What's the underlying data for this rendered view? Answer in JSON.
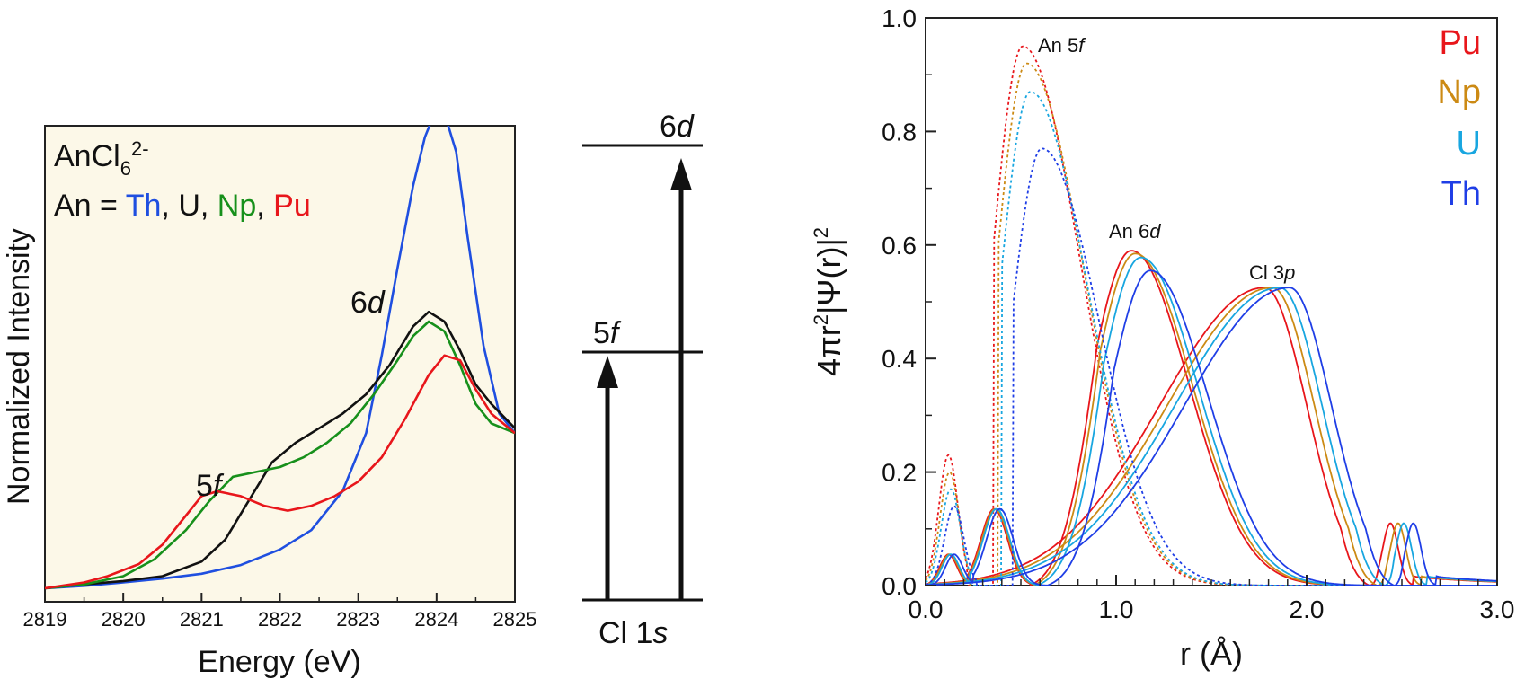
{
  "chart_data": [
    {
      "type": "line",
      "title": "",
      "xlabel": "Energy (eV)",
      "ylabel": "Normalized Intensity",
      "xlim": [
        2819,
        2825
      ],
      "ylim": [
        0,
        1.1
      ],
      "xticks": [
        "2819",
        "2820",
        "2821",
        "2822",
        "2823",
        "2824",
        "2825"
      ],
      "legend": {
        "line1": "AnCl",
        "line1_sub": "6",
        "line1_sup": "2-",
        "line2_prefix": "An = ",
        "entries": [
          {
            "label": "Th",
            "color": "#1f4fe0"
          },
          {
            "label": "U",
            "color": "#111111"
          },
          {
            "label": "Np",
            "color": "#17901b"
          },
          {
            "label": "Pu",
            "color": "#e8161b"
          }
        ],
        "separator": ", "
      },
      "annotations": [
        {
          "text": "5",
          "italic": "f"
        },
        {
          "text": "6",
          "italic": "d"
        }
      ],
      "series": [
        {
          "name": "Th",
          "color": "#1f4fe0",
          "x": [
            2819,
            2819.5,
            2820,
            2820.5,
            2821,
            2821.5,
            2822,
            2822.4,
            2822.8,
            2823.1,
            2823.3,
            2823.5,
            2823.7,
            2823.85,
            2824,
            2824.1,
            2824.25,
            2824.4,
            2824.6,
            2824.8,
            2825
          ],
          "y": [
            0,
            0.005,
            0.012,
            0.02,
            0.03,
            0.048,
            0.08,
            0.12,
            0.2,
            0.32,
            0.48,
            0.66,
            0.83,
            0.93,
            0.99,
            0.98,
            0.9,
            0.72,
            0.5,
            0.36,
            0.32
          ]
        },
        {
          "name": "U",
          "color": "#111111",
          "x": [
            2819,
            2819.5,
            2820,
            2820.5,
            2821,
            2821.3,
            2821.6,
            2821.9,
            2822.2,
            2822.5,
            2822.8,
            2823.1,
            2823.4,
            2823.7,
            2823.9,
            2824.1,
            2824.3,
            2824.5,
            2824.7,
            2825
          ],
          "y": [
            0,
            0.008,
            0.015,
            0.025,
            0.055,
            0.1,
            0.18,
            0.26,
            0.3,
            0.33,
            0.36,
            0.4,
            0.46,
            0.54,
            0.57,
            0.55,
            0.49,
            0.42,
            0.38,
            0.33
          ]
        },
        {
          "name": "Np",
          "color": "#17901b",
          "x": [
            2819,
            2819.5,
            2820,
            2820.4,
            2820.8,
            2821.1,
            2821.4,
            2821.7,
            2822,
            2822.3,
            2822.6,
            2822.9,
            2823.2,
            2823.5,
            2823.7,
            2823.9,
            2824.1,
            2824.3,
            2824.5,
            2824.7,
            2825
          ],
          "y": [
            0,
            0.008,
            0.025,
            0.06,
            0.12,
            0.18,
            0.23,
            0.24,
            0.25,
            0.27,
            0.3,
            0.34,
            0.4,
            0.47,
            0.52,
            0.55,
            0.53,
            0.46,
            0.38,
            0.34,
            0.32
          ]
        },
        {
          "name": "Pu",
          "color": "#e8161b",
          "x": [
            2819,
            2819.5,
            2819.8,
            2820.2,
            2820.5,
            2820.8,
            2821,
            2821.2,
            2821.5,
            2821.8,
            2822.1,
            2822.4,
            2822.7,
            2823,
            2823.3,
            2823.6,
            2823.9,
            2824.1,
            2824.3,
            2824.5,
            2824.7,
            2825
          ],
          "y": [
            0,
            0.012,
            0.025,
            0.05,
            0.09,
            0.15,
            0.19,
            0.2,
            0.19,
            0.17,
            0.16,
            0.17,
            0.19,
            0.22,
            0.27,
            0.35,
            0.44,
            0.48,
            0.47,
            0.41,
            0.36,
            0.32
          ]
        }
      ]
    },
    {
      "type": "diagram",
      "levels": [
        {
          "label": "5",
          "italic": "f"
        },
        {
          "label": "6",
          "italic": "d"
        },
        {
          "label": "Cl 1",
          "italic": "s"
        }
      ]
    },
    {
      "type": "line",
      "title": "",
      "xlabel": "r (Å)",
      "ylabel_parts": [
        "4πr",
        "2",
        "|Ψ(r)|",
        "2"
      ],
      "xlim": [
        0,
        3.0
      ],
      "ylim": [
        0,
        1.0
      ],
      "xticks": [
        "0.0",
        "1.0",
        "2.0",
        "3.0"
      ],
      "yticks": [
        "0.0",
        "0.2",
        "0.4",
        "0.6",
        "0.8",
        "1.0"
      ],
      "legend": [
        {
          "label": "Pu",
          "color": "#e8161b"
        },
        {
          "label": "Np",
          "color": "#cc8a14"
        },
        {
          "label": "U",
          "color": "#18a6e0"
        },
        {
          "label": "Th",
          "color": "#1f3ee6"
        }
      ],
      "annotations": [
        {
          "text": "An 5",
          "italic": "f"
        },
        {
          "text": "An 6",
          "italic": "d"
        },
        {
          "text": "Cl 3",
          "italic": "p"
        }
      ],
      "series": [
        {
          "name": "Pu",
          "color": "#e8161b",
          "An5f_peak": [
            0.51,
            0.95
          ],
          "An6d_peak": [
            1.08,
            0.59
          ],
          "Cl3p_peak": [
            1.78,
            0.525
          ],
          "Cl3p_minor": [
            2.44,
            0.11
          ]
        },
        {
          "name": "Np",
          "color": "#cc8a14",
          "An5f_peak": [
            0.53,
            0.92
          ],
          "An6d_peak": [
            1.1,
            0.585
          ],
          "Cl3p_peak": [
            1.82,
            0.525
          ],
          "Cl3p_minor": [
            2.48,
            0.11
          ]
        },
        {
          "name": "U",
          "color": "#18a6e0",
          "An5f_peak": [
            0.55,
            0.87
          ],
          "An6d_peak": [
            1.13,
            0.578
          ],
          "Cl3p_peak": [
            1.86,
            0.525
          ],
          "Cl3p_minor": [
            2.51,
            0.11
          ]
        },
        {
          "name": "Th",
          "color": "#1f3ee6",
          "An5f_peak": [
            0.61,
            0.77
          ],
          "An6d_peak": [
            1.18,
            0.555
          ],
          "Cl3p_peak": [
            1.91,
            0.525
          ],
          "Cl3p_minor": [
            2.56,
            0.11
          ]
        }
      ]
    }
  ]
}
